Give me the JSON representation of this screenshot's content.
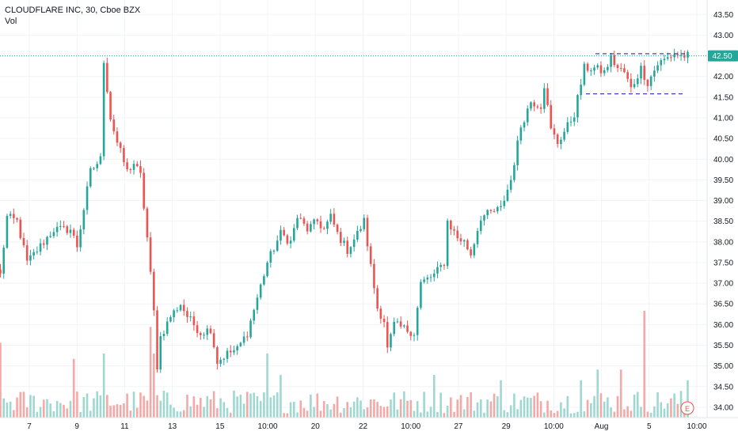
{
  "title": "CLOUDFLARE INC, 30, Cboe BZX",
  "volume_label": "Vol",
  "current_price_label": "42.50",
  "earnings_marker": "E",
  "colors": {
    "up": "#26a69a",
    "down": "#ef5350",
    "vol_up": "#9fd8d1",
    "vol_down": "#f4a9a6",
    "grid": "#f0f3fa",
    "price_line": "#26a69a",
    "pattern_line": "#2a2e9e",
    "earnings": "#ef5350"
  },
  "chart_data": {
    "type": "candlestick",
    "y_ticks": [
      "34.00",
      "34.50",
      "35.00",
      "35.50",
      "36.00",
      "36.50",
      "37.00",
      "37.50",
      "38.00",
      "38.50",
      "39.00",
      "39.50",
      "40.00",
      "40.50",
      "41.00",
      "41.50",
      "42.00",
      "42.50",
      "43.00",
      "43.50"
    ],
    "ylim": [
      33.75,
      43.85
    ],
    "x_ticks": [
      "7",
      "9",
      "11",
      "13",
      "15",
      "10:00",
      "20",
      "22",
      "10:00",
      "27",
      "29",
      "10:00",
      "Aug",
      "5",
      "10:00"
    ],
    "current_price": 42.5,
    "pattern_levels": [
      42.55,
      41.58
    ],
    "anchors": [
      [
        0,
        37.2
      ],
      [
        2,
        38.6
      ],
      [
        5,
        38.5
      ],
      [
        8,
        37.5
      ],
      [
        12,
        37.9
      ],
      [
        16,
        38.3
      ],
      [
        21,
        38.3
      ],
      [
        23,
        37.9
      ],
      [
        27,
        39.7
      ],
      [
        30,
        40.0
      ],
      [
        31,
        42.4
      ],
      [
        33,
        41.0
      ],
      [
        35,
        40.4
      ],
      [
        38,
        39.7
      ],
      [
        40,
        39.9
      ],
      [
        42,
        39.6
      ],
      [
        44,
        38.1
      ],
      [
        46,
        36.3
      ],
      [
        47,
        35.0
      ],
      [
        48,
        35.7
      ],
      [
        51,
        36.2
      ],
      [
        54,
        36.5
      ],
      [
        56,
        36.2
      ],
      [
        60,
        35.8
      ],
      [
        63,
        35.9
      ],
      [
        65,
        35.1
      ],
      [
        68,
        35.3
      ],
      [
        71,
        35.4
      ],
      [
        74,
        35.8
      ],
      [
        80,
        37.5
      ],
      [
        84,
        38.2
      ],
      [
        87,
        38.0
      ],
      [
        89,
        38.6
      ],
      [
        92,
        38.3
      ],
      [
        95,
        38.5
      ],
      [
        97,
        38.3
      ],
      [
        99,
        38.6
      ],
      [
        101,
        38.2
      ],
      [
        104,
        37.8
      ],
      [
        107,
        38.2
      ],
      [
        109,
        38.5
      ],
      [
        111,
        37.4
      ],
      [
        113,
        36.4
      ],
      [
        115,
        36.1
      ],
      [
        116,
        35.4
      ],
      [
        118,
        36.0
      ],
      [
        121,
        35.9
      ],
      [
        124,
        35.8
      ],
      [
        126,
        37.0
      ],
      [
        130,
        37.2
      ],
      [
        133,
        37.5
      ],
      [
        134,
        38.5
      ],
      [
        137,
        38.1
      ],
      [
        139,
        38.0
      ],
      [
        141,
        37.7
      ],
      [
        144,
        38.6
      ],
      [
        147,
        38.7
      ],
      [
        150,
        38.8
      ],
      [
        153,
        39.5
      ],
      [
        156,
        40.8
      ],
      [
        159,
        41.4
      ],
      [
        162,
        41.3
      ],
      [
        163,
        41.8
      ],
      [
        165,
        40.7
      ],
      [
        167,
        40.4
      ],
      [
        170,
        40.8
      ],
      [
        172,
        41.1
      ],
      [
        175,
        42.2
      ],
      [
        178,
        42.2
      ],
      [
        181,
        42.1
      ],
      [
        183,
        42.45
      ],
      [
        185,
        42.2
      ],
      [
        187,
        42.1
      ],
      [
        189,
        41.7
      ],
      [
        192,
        42.2
      ],
      [
        194,
        41.85
      ],
      [
        197,
        42.3
      ],
      [
        200,
        42.45
      ],
      [
        202,
        42.55
      ],
      [
        204,
        42.5
      ]
    ],
    "volume_spikes": [
      [
        0,
        0.7
      ],
      [
        22,
        0.55
      ],
      [
        31,
        0.6
      ],
      [
        45,
        0.85
      ],
      [
        46,
        0.6
      ],
      [
        80,
        0.6
      ],
      [
        84,
        0.4
      ],
      [
        130,
        0.4
      ],
      [
        150,
        0.35
      ],
      [
        174,
        0.35
      ],
      [
        179,
        0.45
      ],
      [
        186,
        0.45
      ],
      [
        193,
        1.0
      ],
      [
        206,
        0.35
      ]
    ],
    "bars": 207
  }
}
